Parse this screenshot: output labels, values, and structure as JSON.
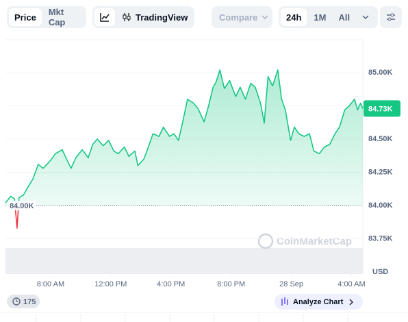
{
  "ui": {
    "tabs": [
      "Price",
      "Mkt Cap"
    ],
    "tradingview": "TradingView",
    "compare": "Compare",
    "ranges": [
      "24h",
      "1M",
      "All"
    ],
    "badge": "175",
    "analyze": "Analyze Chart",
    "watermark": "CoinMarketCap"
  },
  "chart_data": {
    "type": "line",
    "x": [
      5.0,
      5.35,
      5.6,
      5.77,
      5.9,
      6.2,
      6.45,
      6.82,
      7.18,
      7.5,
      8.0,
      8.32,
      8.77,
      9.1,
      9.36,
      9.68,
      10.1,
      10.5,
      10.8,
      11.1,
      11.5,
      11.86,
      12.2,
      12.5,
      12.9,
      13.2,
      13.6,
      13.8,
      14.2,
      14.5,
      14.8,
      15.2,
      15.5,
      15.9,
      16.2,
      16.5,
      16.8,
      17.1,
      17.5,
      17.8,
      18.2,
      18.5,
      18.8,
      19.0,
      19.25,
      19.55,
      19.9,
      20.3,
      20.6,
      20.95,
      21.3,
      21.6,
      21.95,
      22.2,
      22.45,
      22.75,
      23.1,
      23.35,
      23.6,
      23.95,
      24.2,
      24.5,
      24.85,
      25.2,
      25.5,
      25.85,
      26.2,
      26.55,
      26.9,
      27.2,
      27.55,
      27.85,
      28.2,
      28.4,
      28.6,
      28.75
    ],
    "series": [
      {
        "color": "#16c784",
        "below_color": "#ea3943",
        "values": [
          84.02,
          84.07,
          84.05,
          83.83,
          84.06,
          84.08,
          84.13,
          84.2,
          84.31,
          84.28,
          84.34,
          84.39,
          84.42,
          84.34,
          84.28,
          84.36,
          84.42,
          84.36,
          84.46,
          84.5,
          84.45,
          84.49,
          84.41,
          84.39,
          84.44,
          84.37,
          84.41,
          84.3,
          84.35,
          84.44,
          84.54,
          84.52,
          84.59,
          84.52,
          84.54,
          84.49,
          84.64,
          84.8,
          84.77,
          84.73,
          84.63,
          84.75,
          84.89,
          84.93,
          85.02,
          84.88,
          84.94,
          84.82,
          84.89,
          84.8,
          84.92,
          84.89,
          84.77,
          84.62,
          84.97,
          84.9,
          85.02,
          84.8,
          84.72,
          84.49,
          84.59,
          84.54,
          84.52,
          84.54,
          84.41,
          84.39,
          84.44,
          84.46,
          84.54,
          84.59,
          84.72,
          84.75,
          84.8,
          84.72,
          84.77,
          84.73
        ]
      }
    ],
    "xlim": [
      5,
      28.75
    ],
    "xticks": [
      {
        "value": 8,
        "label": "8:00 AM"
      },
      {
        "value": 12,
        "label": "12:00 PM"
      },
      {
        "value": 16,
        "label": "4:00 PM"
      },
      {
        "value": 20,
        "label": "8:00 PM"
      },
      {
        "value": 24,
        "label": "28 Sep"
      },
      {
        "value": 28,
        "label": "4:00 AM"
      }
    ],
    "ylim": [
      83.485,
      85.247
    ],
    "yticks": [
      {
        "value": 83.75,
        "label": "83.75K"
      },
      {
        "value": 84.0,
        "label": "84.00K"
      },
      {
        "value": 84.25,
        "label": "84.25K"
      },
      {
        "value": 84.5,
        "label": "84.50K"
      },
      {
        "value": 84.75,
        "label": "84.75K"
      },
      {
        "value": 85.0,
        "label": "85.00K"
      }
    ],
    "ylabel": "USD",
    "baseline": {
      "value": 84.0,
      "label": "84.00K"
    },
    "current": {
      "value": 84.73,
      "label": "84.73K"
    },
    "grid": true
  }
}
